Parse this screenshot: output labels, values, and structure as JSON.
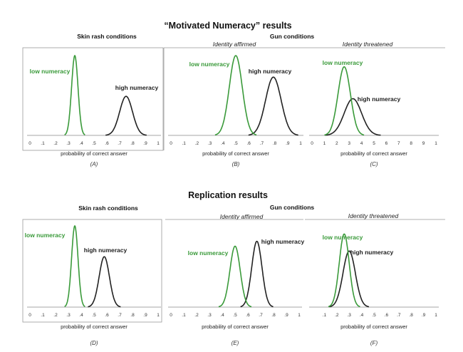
{
  "figure": {
    "title_top": "“Motivated Numeracy” results",
    "title_bottom": "Replication results",
    "skin_rash": "Skin rash conditions",
    "gun": "Gun conditions",
    "affirmed": "Identity affirmed",
    "threatened": "Identity threatened",
    "xlabel": "probability of correct answer"
  },
  "colors": {
    "low": "#3a9a3a",
    "high": "#222222",
    "axis": "#888888"
  },
  "chart_data": [
    {
      "type": "area",
      "panel": "(A)",
      "group": "Skin rash conditions",
      "xlabel": "probability of correct answer",
      "ticks": [
        "0",
        ".1",
        ".2",
        ".3",
        ".4",
        ".5",
        ".6",
        ".7",
        ".8",
        ".9",
        "1"
      ],
      "xlim": [
        0,
        1
      ],
      "series": [
        {
          "name": "low numeracy",
          "mean": 0.35,
          "sd": 0.025,
          "peak": 1.0
        },
        {
          "name": "high numeracy",
          "mean": 0.75,
          "sd": 0.05,
          "peak": 0.49
        }
      ]
    },
    {
      "type": "area",
      "panel": "(B)",
      "group": "Gun conditions",
      "subtitle": "Identity affirmed",
      "xlabel": "probability of correct answer",
      "ticks": [
        "0",
        ".1",
        ".2",
        ".3",
        ".4",
        ".5",
        ".6",
        ".7",
        ".8",
        ".9",
        "1"
      ],
      "xlim": [
        0,
        1
      ],
      "series": [
        {
          "name": "low numeracy",
          "mean": 0.5,
          "sd": 0.05,
          "peak": 1.0
        },
        {
          "name": "high numeracy",
          "mean": 0.79,
          "sd": 0.06,
          "peak": 0.73
        }
      ]
    },
    {
      "type": "area",
      "panel": "(C)",
      "subtitle": "Identity threatened",
      "xlabel": "probability of correct answer",
      "ticks": [
        "0",
        "1",
        "2",
        "3",
        "4",
        "5",
        "6",
        "7",
        "8",
        "9",
        "1"
      ],
      "xlim": [
        0,
        1
      ],
      "series": [
        {
          "name": "low numeracy",
          "mean": 0.26,
          "sd": 0.05,
          "peak": 0.86
        },
        {
          "name": "high numeracy",
          "mean": 0.33,
          "sd": 0.07,
          "peak": 0.46
        }
      ]
    },
    {
      "type": "area",
      "panel": "(D)",
      "group": "Skin rash conditions",
      "xlabel": "probability of correct answer",
      "ticks": [
        "0",
        ".1",
        ".2",
        ".3",
        ".4",
        ".5",
        ".6",
        ".7",
        ".8",
        ".9",
        "1"
      ],
      "xlim": [
        0,
        1
      ],
      "series": [
        {
          "name": "low numeracy",
          "mean": 0.35,
          "sd": 0.025,
          "peak": 1.0
        },
        {
          "name": "high numeracy",
          "mean": 0.58,
          "sd": 0.04,
          "peak": 0.62
        }
      ]
    },
    {
      "type": "area",
      "panel": "(E)",
      "group": "Gun conditions",
      "subtitle": "Identity affirmed",
      "xlabel": "probability of correct answer",
      "ticks": [
        "0",
        ".1",
        ".2",
        ".3",
        ".4",
        ".5",
        ".6",
        ".7",
        ".8",
        ".9",
        "1"
      ],
      "xlim": [
        0,
        1
      ],
      "series": [
        {
          "name": "low numeracy",
          "mean": 0.5,
          "sd": 0.04,
          "peak": 0.75
        },
        {
          "name": "high numeracy",
          "mean": 0.67,
          "sd": 0.04,
          "peak": 0.81
        }
      ]
    },
    {
      "type": "area",
      "panel": "(F)",
      "subtitle": "Identity threatened",
      "xlabel": "probability of correct answer",
      "ticks": [
        ".1",
        ".2",
        ".3",
        ".4",
        ".5",
        ".6",
        ".7",
        ".8",
        ".9",
        "1"
      ],
      "xlim": [
        0,
        1
      ],
      "series": [
        {
          "name": "low numeracy",
          "mean": 0.26,
          "sd": 0.04,
          "peak": 0.9
        },
        {
          "name": "high numeracy",
          "mean": 0.3,
          "sd": 0.05,
          "peak": 0.69
        }
      ]
    }
  ]
}
